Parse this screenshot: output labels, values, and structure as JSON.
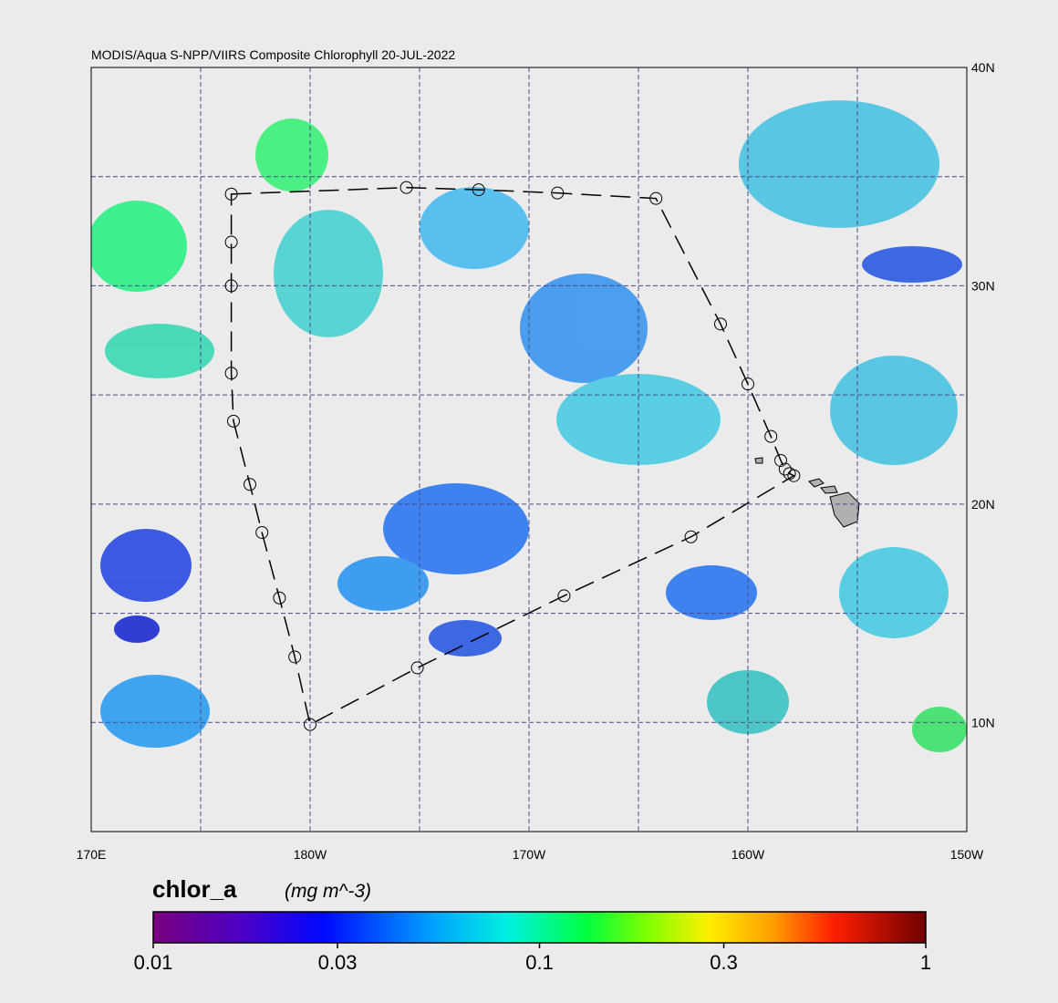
{
  "chart_data": {
    "type": "map",
    "title": "MODIS/Aqua S-NPP/VIIRS Composite Chlorophyll 20-JUL-2022",
    "xlim": [
      170,
      210
    ],
    "ylim": [
      5,
      40
    ],
    "xticks": [
      {
        "value": 170,
        "label": "170E"
      },
      {
        "value": 180,
        "label": "180W"
      },
      {
        "value": 190,
        "label": "170W"
      },
      {
        "value": 200,
        "label": "160W"
      },
      {
        "value": 210,
        "label": "150W"
      }
    ],
    "yticks": [
      {
        "value": 40,
        "label": "40N"
      },
      {
        "value": 30,
        "label": "30N"
      },
      {
        "value": 20,
        "label": "20N"
      },
      {
        "value": 10,
        "label": "10N"
      }
    ],
    "xgrid": [
      175,
      180,
      185,
      190,
      195,
      200,
      205
    ],
    "ygrid": [
      10,
      15,
      20,
      25,
      30,
      35
    ],
    "grid": true,
    "track": {
      "lon": [
        176.4,
        184.4,
        187.7,
        191.3,
        195.8,
        198.75,
        200.0,
        201.05,
        201.5,
        201.7,
        201.9,
        202.1,
        197.4,
        191.6,
        184.9,
        180.0,
        179.3,
        178.6,
        177.8,
        177.25,
        176.5,
        176.4,
        176.4,
        176.4
      ],
      "lat": [
        34.2,
        34.5,
        34.4,
        34.25,
        34.0,
        28.25,
        25.5,
        23.1,
        22.0,
        21.6,
        21.4,
        21.3,
        18.5,
        15.8,
        12.5,
        9.9,
        13.0,
        15.7,
        18.7,
        20.9,
        23.8,
        26.0,
        30.0,
        32.0
      ]
    },
    "colorbar": {
      "label": "chlor_a",
      "units": "(mg m^-3)",
      "lim": [
        0.01,
        1
      ],
      "log": true,
      "ticks": [
        0.01,
        0.03,
        0.1,
        0.3,
        1
      ]
    }
  }
}
